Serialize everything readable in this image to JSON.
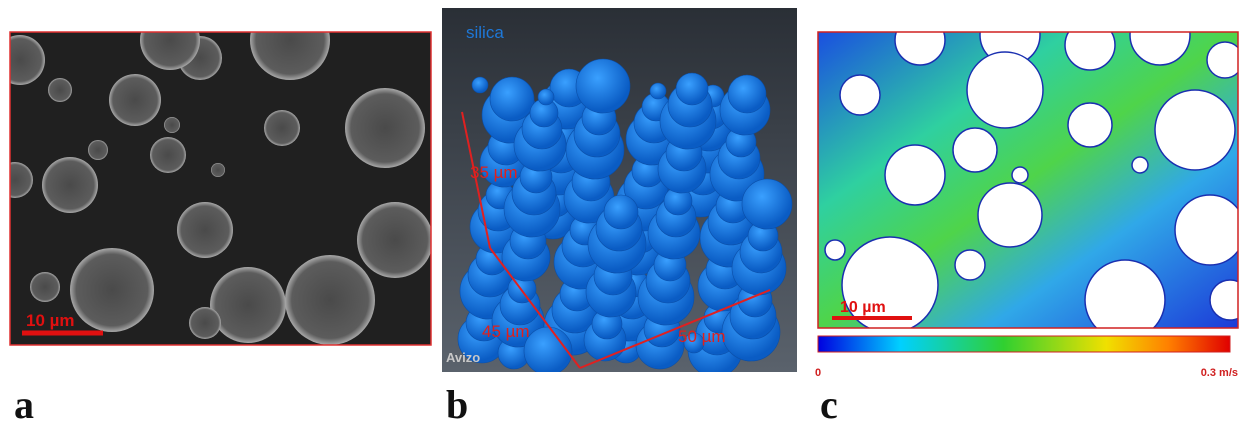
{
  "panels": [
    {
      "label": "a",
      "scale_bar": "10 µm"
    },
    {
      "label": "b",
      "title": "silica",
      "dimensions": [
        "35 µm",
        "45 µm",
        "50 µm"
      ],
      "software": "Avizo"
    },
    {
      "label": "c",
      "scale_bar": "10 µm",
      "colorbar": {
        "min_label": "0",
        "max_label": "0.3 m/s"
      }
    }
  ]
}
